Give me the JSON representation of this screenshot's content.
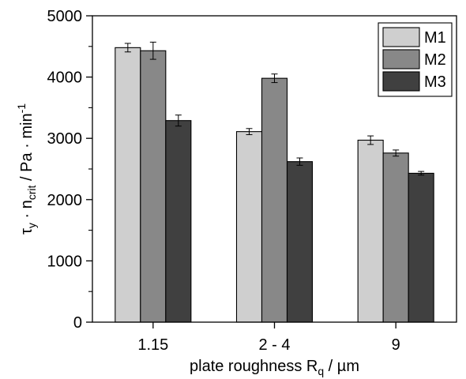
{
  "chart_data": {
    "type": "bar",
    "categories": [
      "1.15",
      "2 - 4",
      "9"
    ],
    "series": [
      {
        "name": "M1",
        "color": "#cfcfcf",
        "values": [
          4480,
          3110,
          2970
        ],
        "errors": [
          70,
          50,
          70
        ]
      },
      {
        "name": "M2",
        "color": "#888888",
        "values": [
          4430,
          3980,
          2760
        ],
        "errors": [
          140,
          70,
          50
        ]
      },
      {
        "name": "M3",
        "color": "#404040",
        "values": [
          3290,
          2620,
          2430
        ],
        "errors": [
          90,
          60,
          30
        ]
      }
    ],
    "xlabel": {
      "main": "plate roughness R",
      "sub": "q",
      "rest": " / µm"
    },
    "ylabel": {
      "tau": "τ",
      "tau_sub": "y",
      "dot1": " · n",
      "n_sub": "crit",
      "mid": " / Pa · min",
      "sup": "-1"
    },
    "ylim": [
      0,
      5000
    ],
    "yticks": [
      0,
      1000,
      2000,
      3000,
      4000,
      5000
    ],
    "legend_position": "top-right",
    "grid": false
  }
}
